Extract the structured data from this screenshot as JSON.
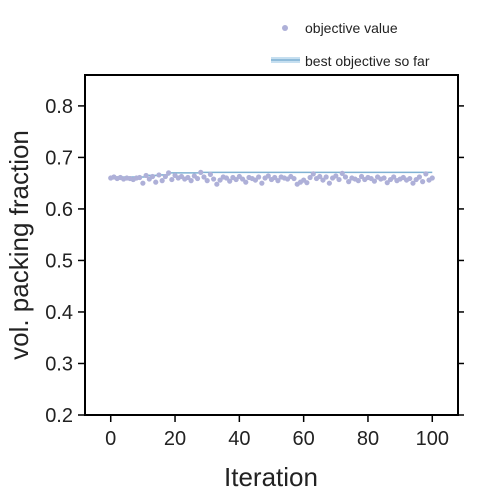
{
  "colors": {
    "point": "#aeb0d8",
    "best_line": "#7fb1d3",
    "legend_line_fill": "#c6dff0",
    "axis": "#000000"
  },
  "legend": {
    "objective_label": "objective value",
    "best_label": "best objective so far"
  },
  "chart_data": {
    "type": "scatter",
    "xlabel": "Iteration",
    "ylabel": "vol. packing fraction",
    "xlim": [
      -8,
      108
    ],
    "ylim": [
      0.2,
      0.86
    ],
    "xticks": [
      "0",
      "20",
      "40",
      "60",
      "80",
      "100"
    ],
    "xtick_values": [
      0,
      20,
      40,
      60,
      80,
      100
    ],
    "yticks": [
      "0.2",
      "0.3",
      "0.4",
      "0.5",
      "0.6",
      "0.7",
      "0.8"
    ],
    "ytick_values": [
      0.2,
      0.3,
      0.4,
      0.5,
      0.6,
      0.7,
      0.8
    ],
    "grid": false,
    "legend_position": "top-right",
    "series": [
      {
        "name": "objective value",
        "kind": "scatter",
        "x": [
          0,
          1,
          2,
          3,
          4,
          5,
          6,
          7,
          8,
          9,
          10,
          11,
          12,
          13,
          14,
          15,
          16,
          17,
          18,
          19,
          20,
          21,
          22,
          23,
          24,
          25,
          26,
          27,
          28,
          29,
          30,
          31,
          32,
          33,
          34,
          35,
          36,
          37,
          38,
          39,
          40,
          41,
          42,
          43,
          44,
          45,
          46,
          47,
          48,
          49,
          50,
          51,
          52,
          53,
          54,
          55,
          56,
          57,
          58,
          59,
          60,
          61,
          62,
          63,
          64,
          65,
          66,
          67,
          68,
          69,
          70,
          71,
          72,
          73,
          74,
          75,
          76,
          77,
          78,
          79,
          80,
          81,
          82,
          83,
          84,
          85,
          86,
          87,
          88,
          89,
          90,
          91,
          92,
          93,
          94,
          95,
          96,
          97,
          98,
          99,
          100
        ],
        "y": [
          0.66,
          0.662,
          0.659,
          0.661,
          0.658,
          0.66,
          0.659,
          0.657,
          0.66,
          0.661,
          0.65,
          0.665,
          0.658,
          0.663,
          0.652,
          0.666,
          0.655,
          0.663,
          0.67,
          0.657,
          0.665,
          0.66,
          0.663,
          0.658,
          0.661,
          0.655,
          0.664,
          0.659,
          0.671,
          0.662,
          0.655,
          0.667,
          0.658,
          0.648,
          0.656,
          0.662,
          0.66,
          0.654,
          0.661,
          0.657,
          0.663,
          0.658,
          0.652,
          0.661,
          0.659,
          0.656,
          0.662,
          0.65,
          0.66,
          0.664,
          0.657,
          0.661,
          0.655,
          0.662,
          0.66,
          0.658,
          0.663,
          0.659,
          0.648,
          0.652,
          0.656,
          0.651,
          0.661,
          0.668,
          0.659,
          0.663,
          0.656,
          0.662,
          0.65,
          0.66,
          0.664,
          0.657,
          0.669,
          0.662,
          0.653,
          0.66,
          0.658,
          0.655,
          0.663,
          0.657,
          0.661,
          0.659,
          0.654,
          0.662,
          0.658,
          0.66,
          0.651,
          0.657,
          0.662,
          0.655,
          0.658,
          0.661,
          0.656,
          0.659,
          0.65,
          0.657,
          0.662,
          0.653,
          0.668,
          0.656,
          0.66
        ]
      },
      {
        "name": "best objective so far",
        "kind": "step",
        "x": [
          0,
          1,
          2,
          3,
          4,
          5,
          6,
          7,
          8,
          9,
          10,
          11,
          12,
          13,
          14,
          15,
          16,
          17,
          18,
          19,
          20,
          21,
          22,
          23,
          24,
          25,
          26,
          27,
          28,
          29,
          30,
          31,
          32,
          33,
          34,
          35,
          36,
          37,
          38,
          39,
          40,
          41,
          42,
          43,
          44,
          45,
          46,
          47,
          48,
          49,
          50,
          51,
          52,
          53,
          54,
          55,
          56,
          57,
          58,
          59,
          60,
          61,
          62,
          63,
          64,
          65,
          66,
          67,
          68,
          69,
          70,
          71,
          72,
          73,
          74,
          75,
          76,
          77,
          78,
          79,
          80,
          81,
          82,
          83,
          84,
          85,
          86,
          87,
          88,
          89,
          90,
          91,
          92,
          93,
          94,
          95,
          96,
          97,
          98,
          99,
          100
        ],
        "y": [
          0.66,
          0.662,
          0.662,
          0.662,
          0.662,
          0.662,
          0.662,
          0.662,
          0.662,
          0.662,
          0.662,
          0.665,
          0.665,
          0.665,
          0.665,
          0.666,
          0.666,
          0.666,
          0.67,
          0.67,
          0.67,
          0.67,
          0.67,
          0.67,
          0.67,
          0.67,
          0.67,
          0.67,
          0.671,
          0.671,
          0.671,
          0.671,
          0.671,
          0.671,
          0.671,
          0.671,
          0.671,
          0.671,
          0.671,
          0.671,
          0.671,
          0.671,
          0.671,
          0.671,
          0.671,
          0.671,
          0.671,
          0.671,
          0.671,
          0.671,
          0.671,
          0.671,
          0.671,
          0.671,
          0.671,
          0.671,
          0.671,
          0.671,
          0.671,
          0.671,
          0.671,
          0.671,
          0.671,
          0.671,
          0.671,
          0.671,
          0.671,
          0.671,
          0.671,
          0.671,
          0.671,
          0.671,
          0.671,
          0.671,
          0.671,
          0.671,
          0.671,
          0.671,
          0.671,
          0.671,
          0.671,
          0.671,
          0.671,
          0.671,
          0.671,
          0.671,
          0.671,
          0.671,
          0.671,
          0.671,
          0.671,
          0.671,
          0.671,
          0.671,
          0.671,
          0.671,
          0.671,
          0.671,
          0.671,
          0.671,
          0.671
        ]
      }
    ]
  }
}
